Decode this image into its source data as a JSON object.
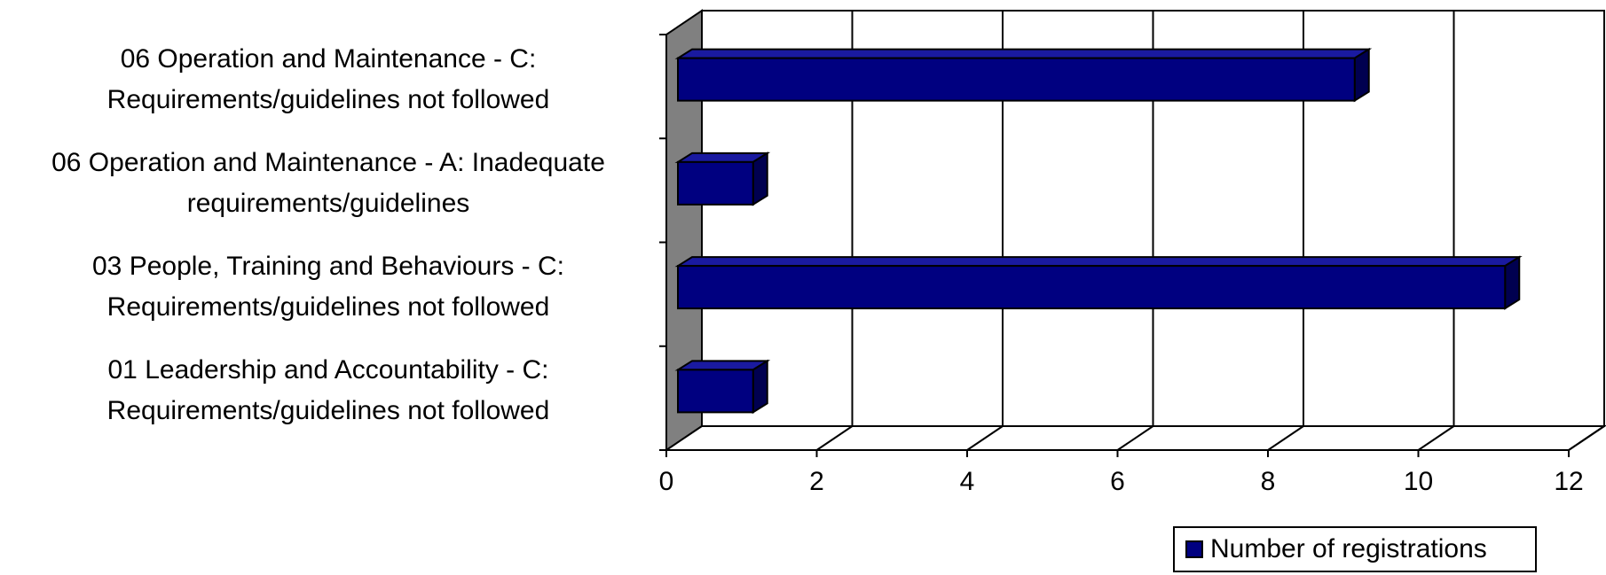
{
  "chart_data": {
    "type": "bar",
    "orientation": "horizontal",
    "three_d": true,
    "categories": [
      [
        "06 Operation and Maintenance - C:",
        "Requirements/guidelines not followed"
      ],
      [
        "06 Operation and Maintenance - A: Inadequate",
        "requirements/guidelines"
      ],
      [
        "03 People, Training and Behaviours - C:",
        "Requirements/guidelines not followed"
      ],
      [
        "01 Leadership and Accountability - C:",
        "Requirements/guidelines not followed"
      ]
    ],
    "series": [
      {
        "name": "Number of registrations",
        "values": [
          9,
          1,
          11,
          1
        ],
        "color": "#000080"
      }
    ],
    "xlim": [
      0,
      12
    ],
    "xticks": [
      "0",
      "2",
      "4",
      "6",
      "8",
      "10",
      "12"
    ],
    "grid": true,
    "legend_position": "bottom-right",
    "colors": {
      "bar": "#000080",
      "wall": "#808080"
    }
  }
}
